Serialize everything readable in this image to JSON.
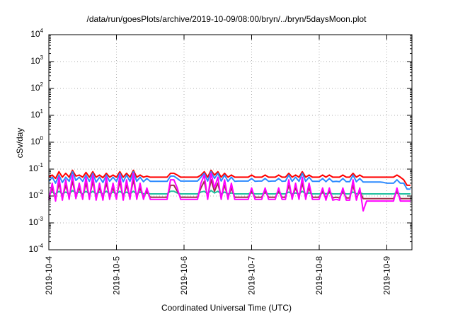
{
  "chart_data": {
    "type": "line",
    "title": "/data/run/goesPlots/archive/2019-10-09/08:00/bryn/../bryn/5daysMoon.plot",
    "xlabel": "Coordinated Universal Time (UTC)",
    "ylabel": "cSv/day",
    "y_scale": "log",
    "ylim": [
      0.0001,
      10000
    ],
    "xlim": [
      "2019-10-04",
      "2019-10-09 08:00"
    ],
    "grid": true,
    "x_ticks": [
      "2019-10-4",
      "2019-10-5",
      "2019-10-6",
      "2019-10-7",
      "2019-10-8",
      "2019-10-9"
    ],
    "y_ticks": [
      {
        "base": "10",
        "exp": "-4"
      },
      {
        "base": "10",
        "exp": "-3"
      },
      {
        "base": "10",
        "exp": "-2"
      },
      {
        "base": "10",
        "exp": "-1"
      },
      {
        "base": "10",
        "exp": "0"
      },
      {
        "base": "10",
        "exp": "1"
      },
      {
        "base": "10",
        "exp": "2"
      },
      {
        "base": "10",
        "exp": "3"
      },
      {
        "base": "10",
        "exp": "4"
      }
    ],
    "x_days": [
      0,
      0.05,
      0.1,
      0.15,
      0.2,
      0.25,
      0.3,
      0.35,
      0.4,
      0.45,
      0.5,
      0.55,
      0.6,
      0.65,
      0.7,
      0.75,
      0.8,
      0.85,
      0.9,
      0.95,
      1,
      1.05,
      1.1,
      1.15,
      1.2,
      1.25,
      1.3,
      1.35,
      1.4,
      1.45,
      1.5,
      1.55,
      1.6,
      1.65,
      1.7,
      1.75,
      1.8,
      1.85,
      1.9,
      1.95,
      2,
      2.05,
      2.1,
      2.15,
      2.2,
      2.25,
      2.3,
      2.35,
      2.4,
      2.45,
      2.5,
      2.55,
      2.6,
      2.65,
      2.7,
      2.75,
      2.8,
      2.85,
      2.9,
      2.95,
      3,
      3.05,
      3.1,
      3.15,
      3.2,
      3.25,
      3.3,
      3.35,
      3.4,
      3.45,
      3.5,
      3.55,
      3.6,
      3.65,
      3.7,
      3.75,
      3.8,
      3.85,
      3.9,
      3.95,
      4,
      4.05,
      4.1,
      4.15,
      4.2,
      4.25,
      4.3,
      4.35,
      4.4,
      4.45,
      4.5,
      4.55,
      4.6,
      4.65,
      4.7,
      4.75,
      4.8,
      4.85,
      4.9,
      4.95,
      5,
      5.05,
      5.1,
      5.15,
      5.2,
      5.25,
      5.3,
      5.35
    ],
    "series": [
      {
        "color": "#ff0000",
        "values": [
          0.05,
          0.06,
          0.045,
          0.08,
          0.05,
          0.07,
          0.05,
          0.09,
          0.055,
          0.06,
          0.05,
          0.075,
          0.05,
          0.08,
          0.05,
          0.06,
          0.048,
          0.07,
          0.05,
          0.06,
          0.05,
          0.08,
          0.05,
          0.07,
          0.05,
          0.09,
          0.05,
          0.06,
          0.05,
          0.055,
          0.05,
          0.05,
          0.05,
          0.05,
          0.05,
          0.05,
          0.07,
          0.07,
          0.06,
          0.05,
          0.05,
          0.05,
          0.05,
          0.05,
          0.05,
          0.06,
          0.08,
          0.05,
          0.09,
          0.06,
          0.08,
          0.05,
          0.07,
          0.05,
          0.06,
          0.05,
          0.05,
          0.05,
          0.05,
          0.05,
          0.06,
          0.05,
          0.05,
          0.05,
          0.06,
          0.05,
          0.05,
          0.05,
          0.06,
          0.05,
          0.05,
          0.07,
          0.05,
          0.06,
          0.05,
          0.08,
          0.05,
          0.06,
          0.05,
          0.05,
          0.05,
          0.06,
          0.05,
          0.06,
          0.05,
          0.05,
          0.05,
          0.06,
          0.05,
          0.05,
          0.07,
          0.05,
          0.06,
          0.05,
          0.05,
          0.05,
          0.05,
          0.05,
          0.05,
          0.05,
          0.05,
          0.05,
          0.05,
          0.06,
          0.05,
          0.04,
          0.025,
          0.025
        ]
      },
      {
        "color": "#2e8bff",
        "values": [
          0.035,
          0.05,
          0.03,
          0.06,
          0.032,
          0.05,
          0.035,
          0.08,
          0.038,
          0.05,
          0.035,
          0.06,
          0.035,
          0.07,
          0.033,
          0.05,
          0.032,
          0.06,
          0.035,
          0.05,
          0.035,
          0.07,
          0.034,
          0.06,
          0.035,
          0.08,
          0.035,
          0.05,
          0.034,
          0.045,
          0.035,
          0.035,
          0.035,
          0.035,
          0.035,
          0.035,
          0.055,
          0.055,
          0.045,
          0.036,
          0.036,
          0.036,
          0.036,
          0.036,
          0.036,
          0.05,
          0.07,
          0.036,
          0.08,
          0.045,
          0.07,
          0.036,
          0.06,
          0.035,
          0.05,
          0.035,
          0.036,
          0.036,
          0.036,
          0.036,
          0.045,
          0.035,
          0.036,
          0.036,
          0.045,
          0.035,
          0.036,
          0.036,
          0.045,
          0.035,
          0.036,
          0.06,
          0.035,
          0.05,
          0.035,
          0.07,
          0.035,
          0.05,
          0.035,
          0.035,
          0.035,
          0.045,
          0.034,
          0.045,
          0.034,
          0.035,
          0.034,
          0.045,
          0.034,
          0.034,
          0.06,
          0.034,
          0.045,
          0.033,
          0.033,
          0.033,
          0.033,
          0.033,
          0.033,
          0.032,
          0.03,
          0.03,
          0.03,
          0.04,
          0.03,
          0.03,
          0.018,
          0.018
        ]
      },
      {
        "color": "#20c0a0",
        "values": [
          0.012,
          0.014,
          0.012,
          0.015,
          0.012,
          0.014,
          0.012,
          0.016,
          0.013,
          0.014,
          0.012,
          0.015,
          0.012,
          0.015,
          0.012,
          0.014,
          0.012,
          0.015,
          0.012,
          0.014,
          0.012,
          0.015,
          0.012,
          0.014,
          0.012,
          0.015,
          0.012,
          0.014,
          0.012,
          0.013,
          0.012,
          0.012,
          0.012,
          0.012,
          0.012,
          0.012,
          0.015,
          0.015,
          0.013,
          0.012,
          0.012,
          0.012,
          0.012,
          0.012,
          0.012,
          0.014,
          0.015,
          0.012,
          0.016,
          0.013,
          0.015,
          0.012,
          0.014,
          0.012,
          0.013,
          0.012,
          0.012,
          0.012,
          0.012,
          0.012,
          0.013,
          0.012,
          0.012,
          0.012,
          0.013,
          0.012,
          0.012,
          0.012,
          0.013,
          0.012,
          0.012,
          0.014,
          0.012,
          0.013,
          0.012,
          0.015,
          0.012,
          0.013,
          0.012,
          0.012,
          0.012,
          0.013,
          0.012,
          0.013,
          0.012,
          0.012,
          0.012,
          0.013,
          0.012,
          0.012,
          0.014,
          0.012,
          0.013,
          0.012,
          0.012,
          0.012,
          0.012,
          0.012,
          0.012,
          0.012,
          0.012,
          0.012,
          0.012,
          0.013,
          0.012,
          0.012,
          0.012,
          0.012
        ]
      },
      {
        "color": "#a0304a",
        "values": [
          0.0085,
          0.02,
          0.008,
          0.03,
          0.0085,
          0.025,
          0.009,
          0.035,
          0.0095,
          0.02,
          0.009,
          0.03,
          0.009,
          0.035,
          0.0085,
          0.02,
          0.0085,
          0.03,
          0.009,
          0.02,
          0.009,
          0.035,
          0.0085,
          0.025,
          0.009,
          0.04,
          0.009,
          0.02,
          0.009,
          0.015,
          0.009,
          0.009,
          0.009,
          0.009,
          0.009,
          0.009,
          0.025,
          0.025,
          0.015,
          0.009,
          0.009,
          0.009,
          0.009,
          0.009,
          0.009,
          0.02,
          0.035,
          0.009,
          0.04,
          0.015,
          0.03,
          0.009,
          0.025,
          0.009,
          0.02,
          0.009,
          0.009,
          0.009,
          0.009,
          0.009,
          0.015,
          0.009,
          0.009,
          0.009,
          0.015,
          0.009,
          0.009,
          0.009,
          0.015,
          0.009,
          0.009,
          0.025,
          0.009,
          0.02,
          0.009,
          0.03,
          0.009,
          0.02,
          0.009,
          0.009,
          0.009,
          0.015,
          0.0085,
          0.015,
          0.0085,
          0.009,
          0.0085,
          0.015,
          0.0085,
          0.0085,
          0.025,
          0.0085,
          0.015,
          0.008,
          0.008,
          0.008,
          0.008,
          0.008,
          0.008,
          0.008,
          0.008,
          0.008,
          0.008,
          0.015,
          0.008,
          0.008,
          0.008,
          0.008
        ]
      },
      {
        "color": "#ff00ff",
        "values": [
          0.007,
          0.03,
          0.0065,
          0.05,
          0.007,
          0.04,
          0.0075,
          0.06,
          0.008,
          0.03,
          0.0075,
          0.05,
          0.0075,
          0.06,
          0.007,
          0.03,
          0.007,
          0.05,
          0.0075,
          0.03,
          0.0075,
          0.06,
          0.007,
          0.04,
          0.0075,
          0.07,
          0.0075,
          0.03,
          0.0075,
          0.02,
          0.0075,
          0.0075,
          0.0075,
          0.0075,
          0.0075,
          0.0075,
          0.04,
          0.04,
          0.02,
          0.0075,
          0.0075,
          0.0075,
          0.0075,
          0.0075,
          0.0075,
          0.03,
          0.06,
          0.0075,
          0.07,
          0.02,
          0.05,
          0.0075,
          0.04,
          0.0075,
          0.03,
          0.0075,
          0.0075,
          0.0075,
          0.0075,
          0.0075,
          0.02,
          0.0075,
          0.0075,
          0.0075,
          0.02,
          0.0075,
          0.0075,
          0.0075,
          0.02,
          0.0075,
          0.0075,
          0.04,
          0.0075,
          0.03,
          0.0075,
          0.05,
          0.0075,
          0.03,
          0.0075,
          0.0075,
          0.0075,
          0.02,
          0.007,
          0.02,
          0.007,
          0.0075,
          0.007,
          0.02,
          0.007,
          0.007,
          0.04,
          0.007,
          0.02,
          0.0028,
          0.0065,
          0.0065,
          0.0065,
          0.0065,
          0.0065,
          0.0065,
          0.0065,
          0.0065,
          0.0065,
          0.02,
          0.0065,
          0.0065,
          0.0065,
          0.0065
        ]
      }
    ]
  }
}
